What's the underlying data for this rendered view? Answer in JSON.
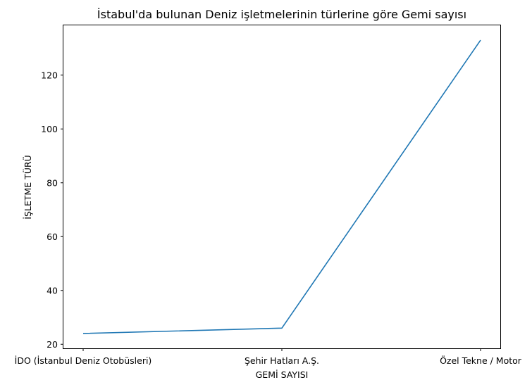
{
  "chart_data": {
    "type": "line",
    "title": "İstabul'da bulunan Deniz işletmelerinin türlerine göre Gemi sayısı",
    "xlabel": "GEMİ SAYISI",
    "ylabel": "İŞLETME TÜRÜ",
    "categories": [
      "İDO (İstanbul Deniz Otobüsleri)",
      "Şehir Hatları A.Ş.",
      "Özel Tekne / Motor"
    ],
    "series": [
      {
        "values": [
          24,
          26,
          133
        ],
        "color": "#1f77b4"
      }
    ],
    "yticks": [
      20,
      40,
      60,
      80,
      100,
      120
    ],
    "ylim": [
      18.5,
      138.5
    ],
    "grid": false
  }
}
